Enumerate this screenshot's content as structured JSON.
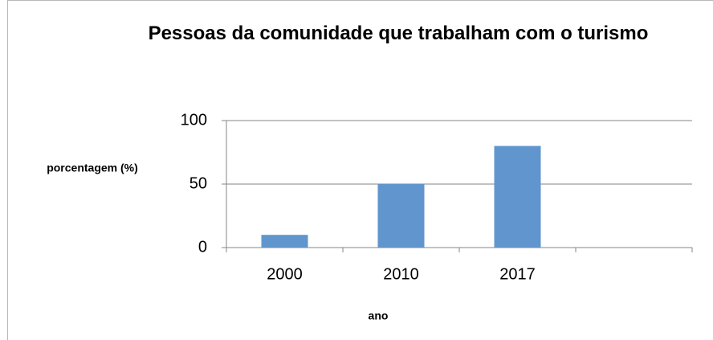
{
  "chart_data": {
    "type": "bar",
    "title": "Pessoas da comunidade que trabalham com o turismo",
    "categories": [
      "2000",
      "2010",
      "2017",
      null
    ],
    "values": [
      10,
      50,
      80,
      null
    ],
    "color": "#6096cd",
    "ylim": [
      0,
      100
    ],
    "yticks": [
      0,
      50,
      100
    ],
    "grid": true,
    "x_label": "ano",
    "y_label": "porcentagem (%)"
  }
}
